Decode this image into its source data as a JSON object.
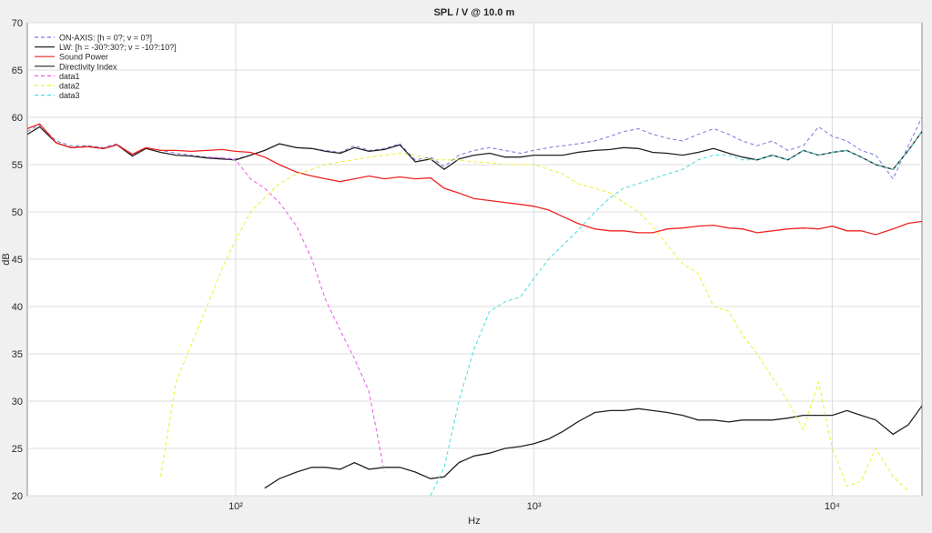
{
  "chart_data": {
    "type": "line",
    "title": "SPL / V @ 10.0 m",
    "x_label": "Hz",
    "y_label": "dB",
    "x_scale": "log",
    "xlim": [
      20,
      20000
    ],
    "xticks": [
      {
        "value": 100,
        "label": "10²"
      },
      {
        "value": 1000,
        "label": "10³"
      },
      {
        "value": 10000,
        "label": "10⁴"
      }
    ],
    "ylim": [
      20,
      70
    ],
    "yticks": [
      20,
      25,
      30,
      35,
      40,
      45,
      50,
      55,
      60,
      65,
      70
    ],
    "grid": true,
    "legend": "upper-left",
    "x": [
      20,
      22,
      25,
      28,
      32,
      36,
      40,
      45,
      50,
      56,
      63,
      71,
      80,
      90,
      100,
      112,
      125,
      140,
      160,
      180,
      200,
      224,
      250,
      280,
      315,
      355,
      400,
      450,
      500,
      560,
      630,
      710,
      800,
      900,
      1000,
      1120,
      1250,
      1400,
      1600,
      1800,
      2000,
      2240,
      2500,
      2800,
      3150,
      3550,
      4000,
      4500,
      5000,
      5600,
      6300,
      7100,
      8000,
      9000,
      10000,
      11200,
      12500,
      14000,
      16000,
      18000,
      20000
    ],
    "series": [
      {
        "name": "ON-AXIS: [h = 0?; v = 0?]",
        "color": "#7777dd",
        "line_style": "dashed",
        "values": [
          58.5,
          59.2,
          57.5,
          57,
          57,
          56.8,
          57.2,
          56,
          56.8,
          56.5,
          56.2,
          56,
          55.8,
          55.7,
          55.6,
          56,
          56.5,
          57.2,
          56.8,
          56.7,
          56.5,
          56.3,
          57,
          56.5,
          56.7,
          57.2,
          55.5,
          55.8,
          54.8,
          56,
          56.5,
          56.8,
          56.5,
          56.2,
          56.5,
          56.8,
          57,
          57.2,
          57.5,
          58,
          58.5,
          58.8,
          58.2,
          57.8,
          57.5,
          58.2,
          58.8,
          58.2,
          57.5,
          57,
          57.5,
          56.5,
          57,
          59,
          58,
          57.5,
          56.5,
          56,
          53.5,
          57,
          60
        ]
      },
      {
        "name": "LW: [h = -30?:30?; v = -10?:10?]",
        "color": "#222222",
        "line_style": "solid",
        "values": [
          58.2,
          59,
          57.3,
          56.8,
          56.9,
          56.7,
          57.1,
          55.9,
          56.7,
          56.3,
          56,
          55.9,
          55.7,
          55.6,
          55.5,
          56,
          56.5,
          57.2,
          56.8,
          56.7,
          56.4,
          56.2,
          56.8,
          56.4,
          56.6,
          57.1,
          55.3,
          55.6,
          54.5,
          55.6,
          56,
          56.2,
          55.8,
          55.8,
          56,
          56,
          56,
          56.3,
          56.5,
          56.6,
          56.8,
          56.7,
          56.3,
          56.2,
          56,
          56.3,
          56.7,
          56.2,
          55.8,
          55.5,
          56,
          55.5,
          56.5,
          56,
          56.3,
          56.5,
          55.8,
          55,
          54.5,
          56.5,
          58.5
        ]
      },
      {
        "name": "Sound Power",
        "color": "#ee2222",
        "line_style": "solid",
        "values": [
          58.8,
          59.3,
          57.3,
          56.8,
          56.9,
          56.7,
          57.1,
          56.1,
          56.8,
          56.5,
          56.5,
          56.4,
          56.5,
          56.6,
          56.4,
          56.3,
          55.8,
          55,
          54.2,
          53.8,
          53.5,
          53.2,
          53.5,
          53.8,
          53.5,
          53.7,
          53.5,
          53.6,
          52.5,
          52,
          51.4,
          51.2,
          51,
          50.8,
          50.6,
          50.2,
          49.5,
          48.8,
          48.2,
          48,
          48,
          47.8,
          47.8,
          48.2,
          48.3,
          48.5,
          48.6,
          48.3,
          48.2,
          47.8,
          48,
          48.2,
          48.3,
          48.2,
          48.5,
          48,
          48,
          47.6,
          48.2,
          48.8,
          49
        ]
      },
      {
        "name": "Directivity Index",
        "color": "#222222",
        "line_style": "solid",
        "values": [
          null,
          null,
          null,
          null,
          null,
          null,
          null,
          null,
          null,
          null,
          null,
          null,
          null,
          null,
          null,
          null,
          20.8,
          21.8,
          22.5,
          23,
          23,
          22.8,
          23.5,
          22.8,
          23,
          23,
          22.5,
          21.8,
          22,
          23.5,
          24.2,
          24.5,
          25,
          25.2,
          25.5,
          26,
          26.8,
          27.8,
          28.8,
          29,
          29,
          29.2,
          29,
          28.8,
          28.5,
          28,
          28,
          27.8,
          28,
          28,
          28,
          28.2,
          28.5,
          28.5,
          28.5,
          29,
          28.5,
          28,
          26.5,
          27.5,
          29.5
        ]
      },
      {
        "name": "data1",
        "color": "#ee55ee",
        "line_style": "dashed",
        "values": [
          null,
          null,
          null,
          null,
          null,
          null,
          null,
          null,
          null,
          null,
          null,
          null,
          55.8,
          55.7,
          55.5,
          53.5,
          52.5,
          51,
          48.5,
          45,
          40.7,
          37.5,
          34.5,
          31,
          22.5,
          null,
          null,
          null,
          null,
          null,
          null,
          null,
          null,
          null,
          null,
          null,
          null,
          null,
          null,
          null,
          null,
          null,
          null,
          null,
          null,
          null,
          null,
          null,
          null,
          null,
          null,
          null,
          null,
          null,
          null,
          null,
          null,
          null,
          null,
          null,
          null
        ]
      },
      {
        "name": "data2",
        "color": "#eeee33",
        "line_style": "dashed",
        "values": [
          null,
          null,
          null,
          null,
          null,
          null,
          null,
          null,
          null,
          22,
          32,
          36,
          40,
          44,
          47,
          50,
          51.5,
          53,
          54,
          54.5,
          55,
          55.3,
          55.5,
          55.8,
          56,
          56.2,
          56,
          55.5,
          55.5,
          55.5,
          55.3,
          55.2,
          55,
          55,
          55,
          54.5,
          54,
          53,
          52.5,
          52,
          51,
          50,
          48.5,
          46.5,
          44.5,
          43.5,
          40,
          39.5,
          37,
          35,
          32.5,
          30,
          27,
          32,
          25,
          21,
          21.5,
          25,
          22,
          20.5,
          null
        ]
      },
      {
        "name": "data3",
        "color": "#44dddd",
        "line_style": "dashed",
        "values": [
          null,
          null,
          null,
          null,
          null,
          null,
          null,
          null,
          null,
          null,
          null,
          null,
          null,
          null,
          null,
          null,
          null,
          null,
          null,
          null,
          null,
          null,
          null,
          null,
          null,
          null,
          null,
          20,
          23,
          30,
          35.5,
          39.5,
          40.5,
          41,
          43,
          45,
          46.5,
          48,
          50,
          51.5,
          52.5,
          53,
          53.5,
          54,
          54.5,
          55.5,
          56,
          56,
          55.5,
          55.5,
          56,
          55.5,
          56.5,
          56,
          56.3,
          56.5,
          55.8,
          55,
          54.5,
          56.5,
          58.5
        ]
      }
    ]
  }
}
